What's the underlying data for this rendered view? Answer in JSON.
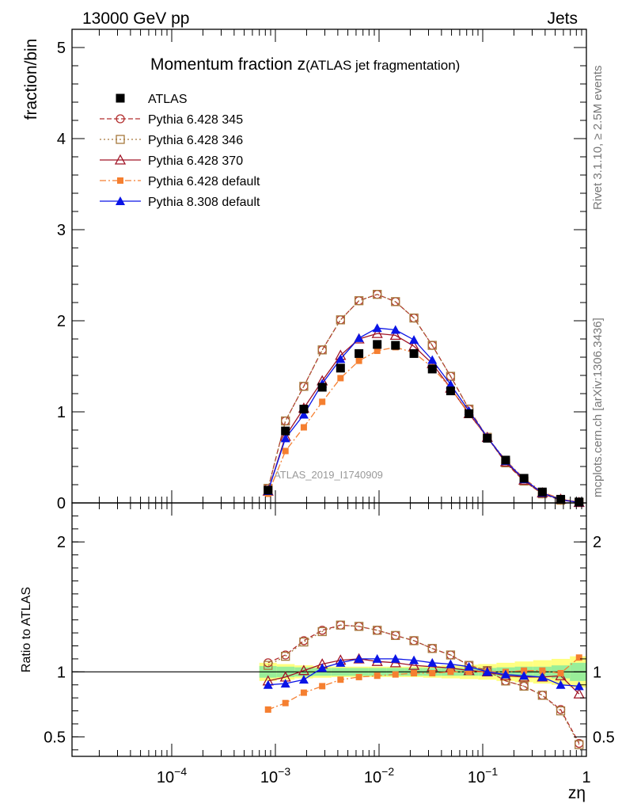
{
  "header": {
    "energy": "13000 GeV pp",
    "process": "Jets",
    "title_main": "Momentum fraction z",
    "title_sub": "(ATLAS jet fragmentation)",
    "analysis_id": "ATLAS_2019_I1740909",
    "rivet_label": "Rivet 3.1.10, ≥ 2.5M events",
    "source_label": "mcplots.cern.ch [arXiv:1306.3436]"
  },
  "chart_data": [
    {
      "type": "scatter",
      "ylabel": "fraction/bin",
      "xscale": "log",
      "xlim": [
        0.0001,
        1
      ],
      "ylim": [
        0,
        5.2
      ],
      "yticks": [
        0,
        1,
        2,
        3,
        4,
        5
      ],
      "ytick_labels": [
        "0",
        "1",
        "2",
        "3",
        "4",
        "5"
      ],
      "legend_position": "top-left",
      "x": [
        0.00085,
        0.00125,
        0.00188,
        0.00283,
        0.00425,
        0.0064,
        0.0096,
        0.0144,
        0.0217,
        0.0326,
        0.049,
        0.0737,
        0.1107,
        0.1664,
        0.25,
        0.376,
        0.565,
        0.85
      ],
      "series": [
        {
          "name": "ATLAS",
          "color": "#000000",
          "values": [
            0.14,
            0.79,
            1.03,
            1.27,
            1.48,
            1.64,
            1.74,
            1.73,
            1.64,
            1.47,
            1.23,
            0.98,
            0.71,
            0.47,
            0.27,
            0.12,
            0.04,
            0.01
          ]
        },
        {
          "name": "Pythia 6.428 345",
          "color": "#b22d2d",
          "values": [
            0.16,
            0.9,
            1.28,
            1.68,
            2.01,
            2.22,
            2.29,
            2.21,
            2.03,
            1.73,
            1.39,
            1.03,
            0.72,
            0.44,
            0.24,
            0.1,
            0.03,
            0.005
          ]
        },
        {
          "name": "Pythia 6.428 346",
          "color": "#a6783c",
          "values": [
            0.16,
            0.9,
            1.28,
            1.68,
            2.01,
            2.22,
            2.29,
            2.21,
            2.03,
            1.73,
            1.39,
            1.03,
            0.72,
            0.44,
            0.24,
            0.1,
            0.03,
            0.005
          ]
        },
        {
          "name": "Pythia 6.428 370",
          "color": "#a01426",
          "values": [
            0.13,
            0.73,
            1.04,
            1.34,
            1.62,
            1.8,
            1.86,
            1.84,
            1.72,
            1.53,
            1.26,
            0.98,
            0.72,
            0.45,
            0.25,
            0.11,
            0.04,
            0.005
          ]
        },
        {
          "name": "Pythia 6.428 default",
          "color": "#f57f30",
          "values": [
            0.1,
            0.57,
            0.83,
            1.11,
            1.37,
            1.56,
            1.67,
            1.71,
            1.65,
            1.49,
            1.26,
            0.99,
            0.72,
            0.47,
            0.27,
            0.12,
            0.045,
            0.01
          ]
        },
        {
          "name": "Pythia 8.308 default",
          "color": "#0a14e6",
          "values": [
            0.13,
            0.71,
            0.97,
            1.31,
            1.58,
            1.81,
            1.92,
            1.9,
            1.79,
            1.57,
            1.3,
            1.01,
            0.72,
            0.46,
            0.26,
            0.11,
            0.035,
            0.005
          ]
        }
      ]
    },
    {
      "type": "scatter",
      "xlabel": "zη",
      "ylabel": "Ratio to ATLAS",
      "xscale": "log",
      "xlim": [
        0.0001,
        1
      ],
      "ylim": [
        0.35,
        2.3
      ],
      "yticks": [
        0.5,
        1,
        2
      ],
      "ytick_labels": [
        "0.5",
        "1",
        "2"
      ],
      "xticks": [
        0.0001,
        0.001,
        0.01,
        0.1,
        1
      ],
      "x": [
        0.00085,
        0.00125,
        0.00188,
        0.00283,
        0.00425,
        0.0064,
        0.0096,
        0.0144,
        0.0217,
        0.0326,
        0.049,
        0.0737,
        0.1107,
        0.1664,
        0.25,
        0.376,
        0.565,
        0.85
      ],
      "series": [
        {
          "name": "Pythia 6.428 345",
          "color": "#b22d2d",
          "values": [
            1.07,
            1.13,
            1.24,
            1.32,
            1.36,
            1.35,
            1.32,
            1.28,
            1.24,
            1.18,
            1.13,
            1.05,
            1.01,
            0.93,
            0.89,
            0.82,
            0.71,
            0.45
          ]
        },
        {
          "name": "Pythia 6.428 346",
          "color": "#a6783c",
          "values": [
            1.05,
            1.12,
            1.23,
            1.31,
            1.36,
            1.35,
            1.32,
            1.28,
            1.24,
            1.18,
            1.13,
            1.05,
            1.01,
            0.93,
            0.89,
            0.82,
            0.7,
            0.44
          ]
        },
        {
          "name": "Pythia 6.428 370",
          "color": "#a01426",
          "values": [
            0.93,
            0.96,
            1.01,
            1.06,
            1.09,
            1.1,
            1.08,
            1.07,
            1.05,
            1.04,
            1.03,
            1.01,
            1.0,
            0.97,
            0.96,
            0.96,
            0.97,
            0.83
          ]
        },
        {
          "name": "Pythia 6.428 default",
          "color": "#f57f30",
          "values": [
            0.71,
            0.76,
            0.84,
            0.89,
            0.94,
            0.96,
            0.97,
            0.98,
            0.99,
            0.99,
            1.0,
            1.0,
            1.0,
            1.0,
            1.01,
            1.01,
            0.99,
            1.11
          ]
        },
        {
          "name": "Pythia 8.308 default",
          "color": "#0a14e6",
          "values": [
            0.9,
            0.91,
            0.94,
            1.03,
            1.07,
            1.1,
            1.1,
            1.1,
            1.09,
            1.07,
            1.06,
            1.04,
            1.0,
            0.98,
            0.97,
            0.96,
            0.9,
            0.89
          ]
        }
      ],
      "reference_line": 1,
      "uncertainty_band_x": [
        0.0007,
        1
      ],
      "uncertainty_inner": [
        0.045,
        0.04,
        0.035,
        0.03,
        0.03,
        0.03,
        0.03,
        0.03,
        0.03,
        0.03,
        0.03,
        0.03,
        0.03,
        0.035,
        0.04,
        0.04,
        0.05,
        0.07
      ],
      "uncertainty_outer": [
        0.07,
        0.06,
        0.05,
        0.045,
        0.04,
        0.04,
        0.04,
        0.04,
        0.04,
        0.045,
        0.05,
        0.055,
        0.06,
        0.07,
        0.08,
        0.09,
        0.1,
        0.12
      ],
      "band_colors": {
        "inner": "#99ee99",
        "outer": "#ffff80"
      }
    }
  ],
  "markers": {
    "ATLAS": "filled-square",
    "Pythia 6.428 345": "open-circle",
    "Pythia 6.428 346": "open-square",
    "Pythia 6.428 370": "open-triangle",
    "Pythia 6.428 default": "filled-square-small",
    "Pythia 8.308 default": "filled-triangle"
  },
  "line_styles": {
    "Pythia 6.428 345": "dashed",
    "Pythia 6.428 346": "dotted",
    "Pythia 6.428 370": "solid",
    "Pythia 6.428 default": "dashdot",
    "Pythia 8.308 default": "solid"
  }
}
